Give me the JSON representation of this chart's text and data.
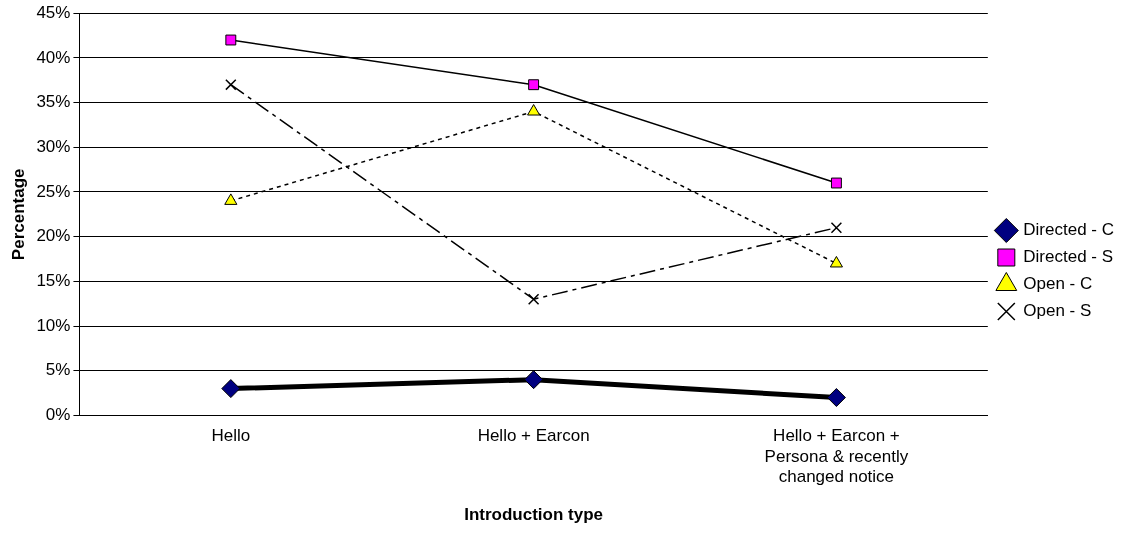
{
  "chart_data": {
    "type": "line",
    "xlabel": "Introduction type",
    "ylabel": "Percentage",
    "categories": [
      "Hello",
      "Hello + Earcon",
      "Hello + Earcon + Persona & recently changed notice"
    ],
    "series": [
      {
        "name": "Directed - C",
        "color": "#000080",
        "marker": "diamond",
        "line_style": "solid",
        "values": [
          3,
          4,
          2
        ]
      },
      {
        "name": "Directed - S",
        "color": "#ff00ff",
        "marker": "square",
        "line_style": "solid",
        "values": [
          42,
          37,
          26
        ]
      },
      {
        "name": "Open - C",
        "color": "#ffff00",
        "marker": "triangle",
        "line_style": "dotted",
        "values": [
          24,
          34,
          17
        ]
      },
      {
        "name": "Open - S",
        "color": "#000000",
        "marker": "cross",
        "line_style": "dashed",
        "values": [
          37,
          13,
          21
        ]
      }
    ],
    "ylim": [
      0,
      45
    ],
    "yticks": [
      {
        "value": 0,
        "label": "0%"
      },
      {
        "value": 5,
        "label": "5%"
      },
      {
        "value": 10,
        "label": "10%"
      },
      {
        "value": 15,
        "label": "15%"
      },
      {
        "value": 20,
        "label": "20%"
      },
      {
        "value": 25,
        "label": "25%"
      },
      {
        "value": 30,
        "label": "30%"
      },
      {
        "value": 35,
        "label": "35%"
      },
      {
        "value": 40,
        "label": "40%"
      },
      {
        "value": 45,
        "label": "45%"
      }
    ],
    "grid": "y",
    "legend": "right"
  }
}
